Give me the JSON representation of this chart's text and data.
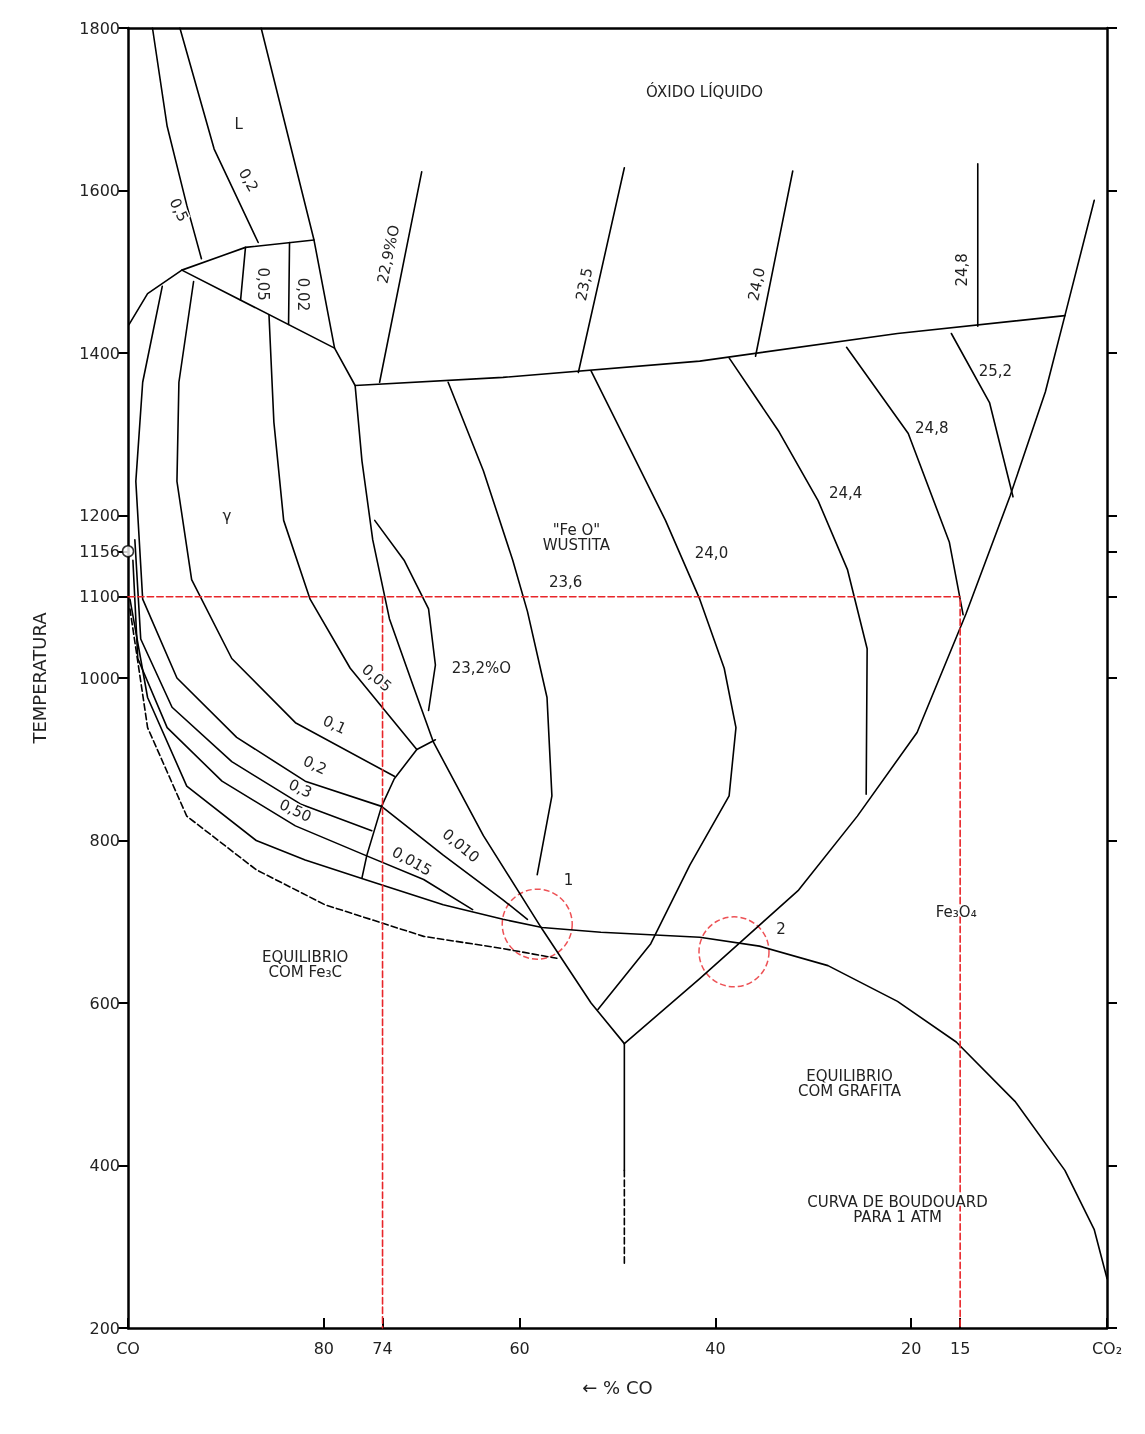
{
  "chart_data": {
    "type": "line",
    "xlabel": "← % CO",
    "ylabel": "TEMPERATURA",
    "xlim": [
      100,
      0
    ],
    "ylim": [
      200,
      1800
    ],
    "xticks": [
      {
        "value": 100,
        "label": "CO"
      },
      80,
      74,
      60,
      40,
      20,
      15,
      {
        "value": 0,
        "label": "CO₂"
      }
    ],
    "yticks": [
      200,
      400,
      600,
      800,
      1000,
      1100,
      1156,
      1200,
      1400,
      1600,
      1800
    ],
    "grid": false,
    "marker": "none",
    "line_style": "solid",
    "series": [
      {
        "color": "#000000",
        "x": [
          99.8,
          98.0,
          94.0,
          86.9,
          81.9,
          75.8,
          67.8,
          61.7,
          57.7,
          51.7,
          41.6,
          35.5,
          28.5,
          21.4,
          15.4,
          9.4,
          4.3,
          1.3,
          0
        ],
        "values": [
          1097,
          976,
          867,
          800,
          776,
          752,
          721,
          703,
          693,
          687,
          681,
          670,
          646,
          602,
          552,
          479,
          394,
          321,
          261
        ]
      },
      {
        "color": "#000000",
        "line_style": "dashed",
        "x": [
          99.8,
          98.0,
          94.0,
          86.9,
          79.9,
          69.8,
          61.7,
          56.2
        ],
        "values": [
          1085,
          939,
          830,
          764,
          721,
          682,
          667,
          655
        ]
      },
      {
        "color": "#000000",
        "x": [
          86.4,
          81.0,
          78.9,
          76.8,
          76.1,
          75.0,
          73.3,
          70.8,
          68.8,
          63.7,
          57.7,
          52.7,
          49.3
        ],
        "values": [
          1800,
          1539,
          1406,
          1360,
          1267,
          1170,
          1073,
          988,
          921,
          806,
          691,
          600,
          550
        ]
      },
      {
        "color": "#000000",
        "x": [
          49.3,
          41.6,
          37.6,
          31.5,
          25.5,
          19.4,
          14.4,
          9.9,
          6.3,
          4.3,
          1.3
        ],
        "values": [
          550,
          630,
          673,
          739,
          830,
          933,
          1079,
          1224,
          1352,
          1446,
          1588
        ]
      },
      {
        "color": "#000000",
        "x": [
          76.8,
          61.7,
          41.6,
          21.4,
          4.3
        ],
        "values": [
          1360,
          1370,
          1390,
          1424,
          1446
        ]
      },
      {
        "color": "#000000",
        "x": [
          49.3,
          49.3
        ],
        "values": [
          550,
          394
        ]
      },
      {
        "color": "#000000",
        "line_style": "dashed",
        "x": [
          49.3,
          49.3
        ],
        "values": [
          394,
          279
        ]
      },
      {
        "color": "#000000",
        "x": [
          99.9,
          98.0,
          94.5,
          88.0,
          81.0
        ],
        "values": [
          1435,
          1473,
          1502,
          1530,
          1539
        ]
      },
      {
        "color": "#000000",
        "x": [
          94.5,
          78.9
        ],
        "values": [
          1502,
          1406
        ]
      },
      {
        "color": "#000000",
        "x": [
          97.5,
          96.0,
          94.0,
          92.5
        ],
        "values": [
          1800,
          1679,
          1582,
          1516
        ]
      },
      {
        "color": "#000000",
        "x": [
          94.7,
          91.2,
          86.7
        ],
        "values": [
          1800,
          1651,
          1536
        ]
      },
      {
        "color": "#000000",
        "x": [
          88.0,
          88.5
        ],
        "values": [
          1530,
          1465
        ]
      },
      {
        "color": "#000000",
        "x": [
          83.5,
          83.6
        ],
        "values": [
          1536,
          1435
        ]
      },
      {
        "color": "#000000",
        "x": [
          99.5,
          99.0,
          96.0,
          90.4,
          82.9,
          75.8,
          69.8,
          64.8
        ],
        "values": [
          1145,
          1024,
          939,
          873,
          818,
          782,
          752,
          715
        ]
      },
      {
        "color": "#000000",
        "x": [
          99.3,
          98.7,
          95.5,
          89.4,
          82.4,
          75.1
        ],
        "values": [
          1170,
          1048,
          964,
          897,
          845,
          812
        ]
      },
      {
        "color": "#000000",
        "x": [
          96.5,
          98.5,
          99.2,
          98.5,
          95.0,
          88.9,
          81.9,
          74.1,
          67.8,
          61.7,
          59.2
        ],
        "values": [
          1482,
          1364,
          1242,
          1097,
          1000,
          927,
          873,
          842,
          782,
          727,
          703
        ]
      },
      {
        "color": "#000000",
        "x": [
          93.3,
          94.8,
          95.0,
          93.5,
          89.4,
          82.9,
          72.8
        ],
        "values": [
          1488,
          1364,
          1242,
          1121,
          1024,
          945,
          879
        ]
      },
      {
        "color": "#000000",
        "x": [
          85.6,
          85.1,
          84.1,
          81.4,
          77.3,
          70.5
        ],
        "values": [
          1447,
          1315,
          1194,
          1097,
          1012,
          912
        ]
      },
      {
        "color": "#000000",
        "x": [
          76.1,
          75.6,
          74.1,
          72.8,
          70.5,
          68.6
        ],
        "values": [
          754,
          782,
          842,
          876,
          912,
          924
        ]
      },
      {
        "color": "#000000",
        "x": [
          74.8,
          71.8,
          69.3,
          68.6,
          69.3
        ],
        "values": [
          1194,
          1145,
          1085,
          1016,
          960
        ]
      },
      {
        "color": "#000000",
        "x": [
          67.3,
          63.7,
          60.7,
          59.2,
          57.2,
          56.7,
          58.2
        ],
        "values": [
          1364,
          1255,
          1145,
          1082,
          976,
          855,
          758
        ]
      },
      {
        "color": "#000000",
        "x": [
          52.7,
          48.6,
          45.1,
          41.6,
          39.1,
          37.9,
          38.6,
          42.6,
          46.6,
          52.0
        ],
        "values": [
          1378,
          1279,
          1194,
          1097,
          1012,
          939,
          855,
          770,
          673,
          592
        ]
      },
      {
        "color": "#000000",
        "x": [
          38.6,
          33.5,
          29.5,
          26.5,
          24.5,
          24.6
        ],
        "values": [
          1394,
          1303,
          1218,
          1133,
          1036,
          857
        ]
      },
      {
        "color": "#000000",
        "x": [
          26.6,
          20.3,
          16.1,
          14.7
        ],
        "values": [
          1407,
          1301,
          1167,
          1078
        ]
      },
      {
        "color": "#000000",
        "x": [
          15.9,
          12.0,
          9.6
        ],
        "values": [
          1424,
          1339,
          1223
        ]
      },
      {
        "color": "#000000",
        "x": [
          70.0,
          74.3
        ],
        "values": [
          1623,
          1364
        ]
      },
      {
        "color": "#000000",
        "x": [
          49.3,
          54.0
        ],
        "values": [
          1628,
          1376
        ]
      },
      {
        "color": "#000000",
        "x": [
          32.1,
          35.9
        ],
        "values": [
          1624,
          1396
        ]
      },
      {
        "color": "#000000",
        "x": [
          13.2,
          13.2
        ],
        "values": [
          1633,
          1433
        ]
      },
      {
        "color": "#e8262a",
        "line_style": "dashed",
        "x": [
          100,
          15,
          15,
          null,
          74,
          74
        ],
        "values": [
          1100,
          1100,
          200,
          null,
          1100,
          200
        ]
      },
      {
        "type": "bubble",
        "color": "#e8262a",
        "line_style": "dashed",
        "marker": "circle",
        "x": [
          58.2,
          38.1
        ],
        "values": [
          697,
          663
        ],
        "sizes": [
          1,
          1
        ]
      },
      {
        "type": "scatter",
        "color": "#000000",
        "marker": "circle",
        "x": [
          100
        ],
        "values": [
          1156
        ]
      }
    ],
    "annotations": [
      "ÓXIDO LÍQUIDO",
      "L",
      "0,5",
      "0,2",
      "0,05",
      "0,02",
      "22,9%O",
      "23,5",
      "24,0",
      "24,8",
      "25,2",
      "24,8",
      "24,4",
      "24,0",
      "\"Fe O\"\nWUSTITA",
      "23,6",
      "23,2%O",
      "γ",
      "0,05",
      "0,1",
      "0,2",
      "0,3",
      "0,50",
      "0,010",
      "0,015",
      "EQUILIBRIO\nCOM Fe₃C",
      "EQUILIBRIO\nCOM GRAFITA",
      "Fe₃O₄",
      "CURVA DE BOUDOUARD\nPARA 1 ATM",
      "1",
      "2"
    ]
  }
}
